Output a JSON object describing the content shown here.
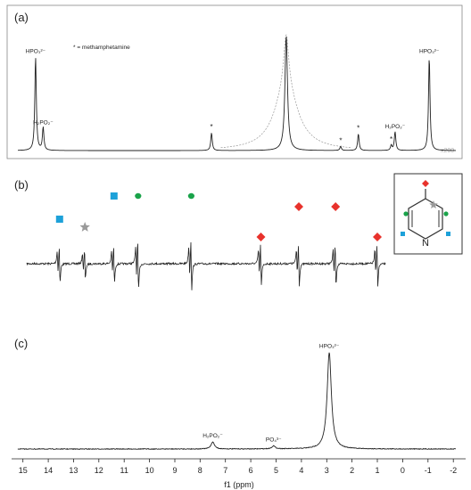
{
  "chart_data": [
    {
      "type": "line",
      "panel_label": "(a)",
      "legend_note": "* = methamphetamine",
      "scale_note": "x200",
      "peak_labels": [
        {
          "text": "HPO₃²⁻",
          "x": 14.5
        },
        {
          "text": "H₂PO₂⁻",
          "x": 14.2
        },
        {
          "text": "*",
          "x": 7.55
        },
        {
          "text": "*",
          "x": 2.45
        },
        {
          "text": "*",
          "x": 1.75
        },
        {
          "text": "*",
          "x": 0.45
        },
        {
          "text": "H₂PO₂⁻",
          "x": 0.3
        },
        {
          "text": "HPO₃²⁻",
          "x": -1.05
        }
      ],
      "peaks": [
        {
          "x": 14.5,
          "height": 0.9
        },
        {
          "x": 14.2,
          "height": 0.22
        },
        {
          "x": 7.55,
          "height": 0.17
        },
        {
          "x": 2.45,
          "height": 0.04
        },
        {
          "x": 1.75,
          "height": 0.16
        },
        {
          "x": 0.45,
          "height": 0.05
        },
        {
          "x": 0.3,
          "height": 0.18
        },
        {
          "x": -1.05,
          "height": 0.9
        }
      ],
      "water_peak_x": 4.6,
      "xlim": [
        15.2,
        -2.1
      ]
    },
    {
      "type": "line",
      "panel_label": "(b)",
      "markers": [
        {
          "x": 13.55,
          "shape": "square",
          "color": "#1da1d9"
        },
        {
          "x": 12.55,
          "shape": "star",
          "color": "#9a9a9a"
        },
        {
          "x": 11.4,
          "shape": "square",
          "color": "#1da1d9"
        },
        {
          "x": 10.45,
          "shape": "circle",
          "color": "#1aa34a"
        },
        {
          "x": 8.35,
          "shape": "circle",
          "color": "#1aa34a"
        },
        {
          "x": 5.6,
          "shape": "diamond",
          "color": "#e8322c"
        },
        {
          "x": 4.1,
          "shape": "diamond",
          "color": "#e8322c"
        },
        {
          "x": 2.65,
          "shape": "diamond",
          "color": "#e8322c"
        },
        {
          "x": 1.0,
          "shape": "diamond",
          "color": "#e8322c"
        }
      ],
      "inset_label": "N"
    },
    {
      "type": "line",
      "panel_label": "(c)",
      "peak_labels": [
        {
          "text": "H₂PO₂⁻",
          "x": 7.5
        },
        {
          "text": "PO₄³⁻",
          "x": 5.1
        },
        {
          "text": "HPO₃²⁻",
          "x": 2.9
        }
      ],
      "peaks": [
        {
          "x": 7.5,
          "height": 0.07
        },
        {
          "x": 5.1,
          "height": 0.03
        },
        {
          "x": 2.9,
          "height": 0.95
        }
      ],
      "xlabel": "f1 (ppm)",
      "xticks": [
        15,
        14,
        13,
        12,
        11,
        10,
        9,
        8,
        7,
        6,
        5,
        4,
        3,
        2,
        1,
        0,
        -1,
        -2
      ],
      "xlim": [
        15.2,
        -2.1
      ]
    }
  ]
}
